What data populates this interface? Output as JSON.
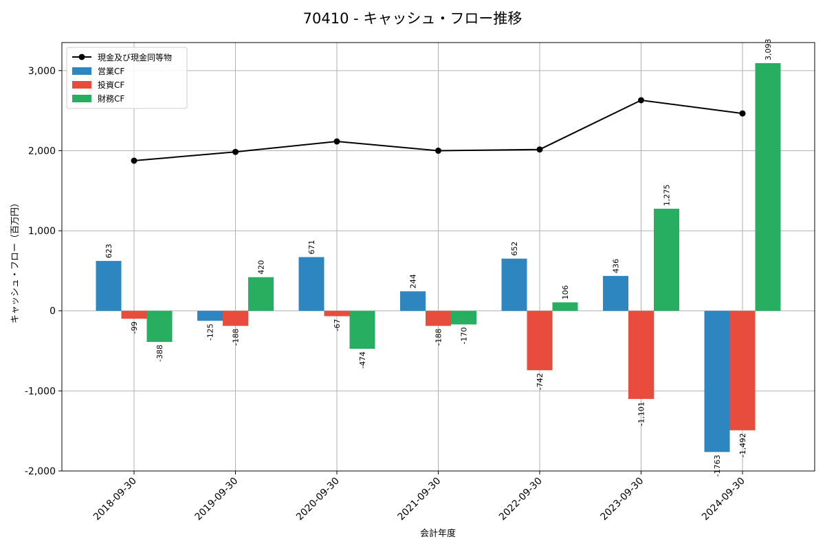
{
  "chart_data": {
    "type": "bar",
    "title": "70410 - キャッシュ・フロー推移",
    "xlabel": "会計年度",
    "ylabel": "キャッシュ・フロー（百万円）",
    "ylim": [
      -2000,
      3350
    ],
    "yticks": [
      -2000,
      -1000,
      0,
      1000,
      2000,
      3000
    ],
    "ytick_labels": [
      "-2,000",
      "-1,000",
      "0",
      "1,000",
      "2,000",
      "3,000"
    ],
    "grid": true,
    "legend_position": "top-left",
    "categories": [
      "2018-09-30",
      "2019-09-30",
      "2020-09-30",
      "2021-09-30",
      "2022-09-30",
      "2023-09-30",
      "2024-09-30"
    ],
    "series": [
      {
        "name": "営業CF",
        "type": "bar",
        "color": "#2e86c1",
        "values": [
          623,
          -125,
          671,
          244,
          652,
          436,
          -1763
        ],
        "labels": [
          "623",
          "-125",
          "671",
          "244",
          "652",
          "436",
          "-1763"
        ]
      },
      {
        "name": "投資CF",
        "type": "bar",
        "color": "#e74c3c",
        "values": [
          -99,
          -188,
          -67,
          -188,
          -742,
          -1101,
          -1492
        ],
        "labels": [
          "-99",
          "-188",
          "-67",
          "-188",
          "-742",
          "-1,101",
          "-1,492"
        ]
      },
      {
        "name": "財務CF",
        "type": "bar",
        "color": "#27ae60",
        "values": [
          -388,
          420,
          -474,
          -170,
          106,
          1275,
          3093
        ],
        "labels": [
          "-388",
          "420",
          "-474",
          "-170",
          "106",
          "1,275",
          "3,093"
        ]
      },
      {
        "name": "現金及び現金同等物",
        "type": "line",
        "color": "#000000",
        "values": [
          1875,
          1985,
          2115,
          2000,
          2015,
          2630,
          2465
        ]
      }
    ]
  }
}
